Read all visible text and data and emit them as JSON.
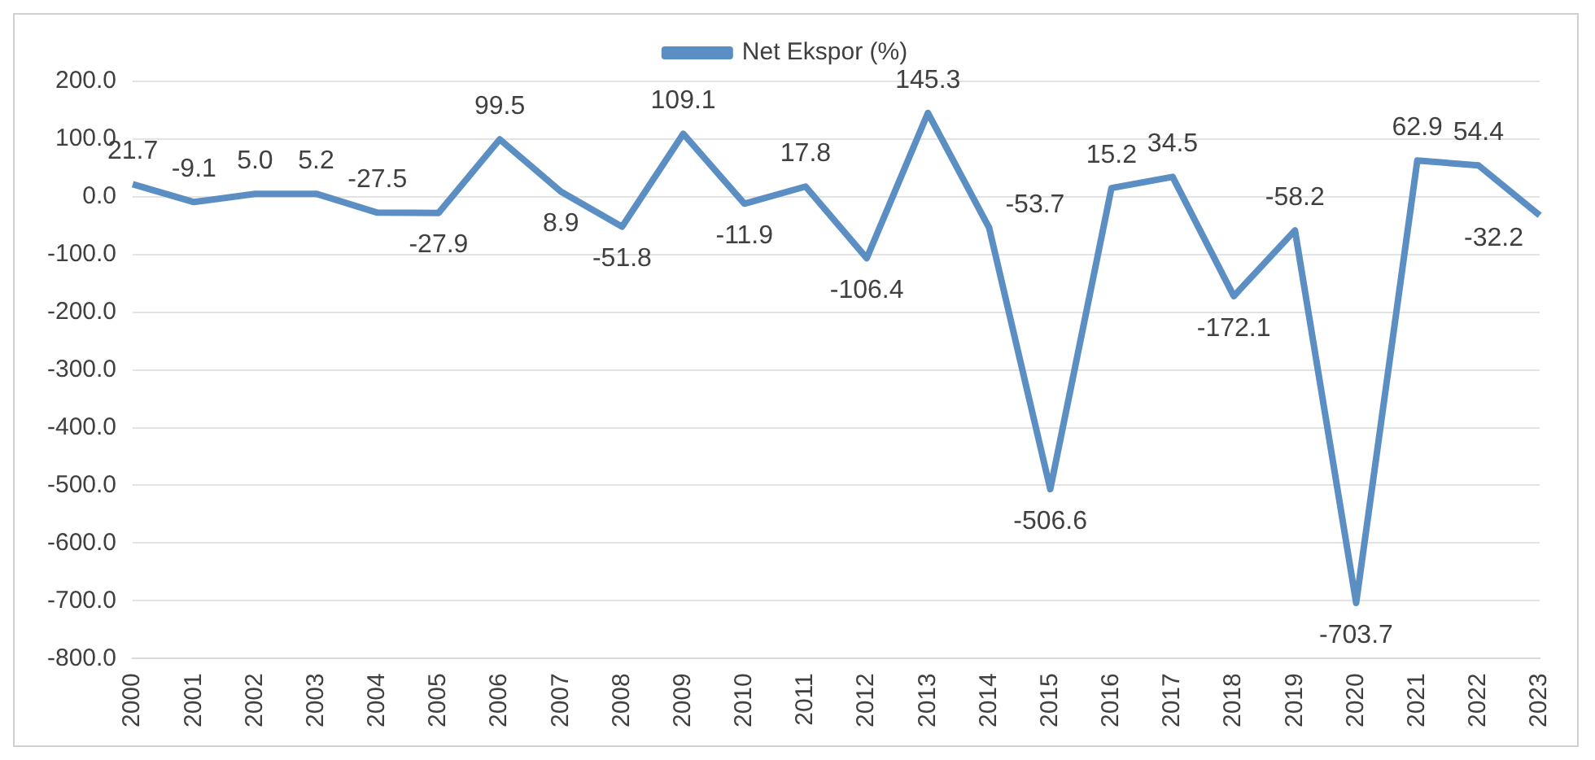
{
  "chart_data": {
    "type": "line",
    "categories": [
      "2000",
      "2001",
      "2002",
      "2003",
      "2004",
      "2005",
      "2006",
      "2007",
      "2008",
      "2009",
      "2010",
      "2011",
      "2012",
      "2013",
      "2014",
      "2015",
      "2016",
      "2017",
      "2018",
      "2019",
      "2020",
      "2021",
      "2022",
      "2023"
    ],
    "series": [
      {
        "name": "Net Ekspor (%)",
        "color": "#5b8fc4",
        "values": [
          21.7,
          -9.1,
          5.0,
          5.2,
          -27.5,
          -27.9,
          99.5,
          8.9,
          -51.8,
          109.1,
          -11.9,
          17.8,
          -106.4,
          145.3,
          -53.7,
          -506.6,
          15.2,
          34.5,
          -172.1,
          -58.2,
          -703.7,
          62.9,
          54.4,
          -32.2
        ],
        "value_labels": [
          "21.7",
          "-9.1",
          "5.0",
          "5.2",
          "-27.5",
          "-27.9",
          "99.5",
          "8.9",
          "-51.8",
          "109.1",
          "-11.9",
          "17.8",
          "-106.4",
          "145.3",
          "-53.7",
          "-506.6",
          "15.2",
          "34.5",
          "-172.1",
          "-58.2",
          "-703.7",
          "62.9",
          "54.4",
          "-32.2"
        ]
      }
    ],
    "ylim": [
      -800,
      200
    ],
    "yticks": [
      {
        "value": -800,
        "label": "-800.0"
      },
      {
        "value": -700,
        "label": "-700.0"
      },
      {
        "value": -600,
        "label": "-600.0"
      },
      {
        "value": -500,
        "label": "-500.0"
      },
      {
        "value": -400,
        "label": "-400.0"
      },
      {
        "value": -300,
        "label": "-300.0"
      },
      {
        "value": -200,
        "label": "-200.0"
      },
      {
        "value": -100,
        "label": "-100.0"
      },
      {
        "value": 0,
        "label": "0.0"
      },
      {
        "value": 100,
        "label": "100.0"
      },
      {
        "value": 200,
        "label": "200.0"
      }
    ],
    "grid": "y",
    "legend": "top",
    "marker": "none",
    "line_style": "solid"
  }
}
